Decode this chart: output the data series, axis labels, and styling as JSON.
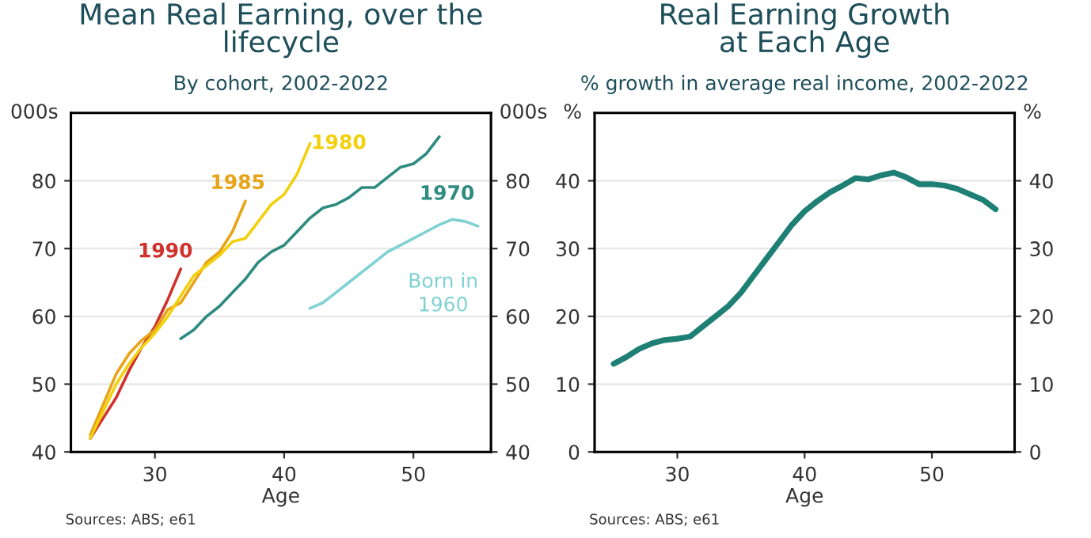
{
  "chart_data": [
    {
      "type": "line",
      "title": "Mean Real Earning, over the\nlifecycle",
      "subtitle": "By cohort, 2002-2022",
      "xlabel": "Age",
      "ylabel": "000s",
      "y2label": "000s",
      "xlim": [
        23.5,
        56
      ],
      "xticks": [
        30,
        40,
        50
      ],
      "ylim": [
        40,
        90
      ],
      "yticks": [
        40,
        50,
        60,
        70,
        80
      ],
      "y2lim": [
        40,
        90
      ],
      "y2ticks": [
        40,
        50,
        60,
        70,
        80
      ],
      "grid": "y",
      "legend": false,
      "series": [
        {
          "name": "1990",
          "color": "#d0312d",
          "x": [
            25,
            26,
            27,
            28,
            29,
            30,
            31,
            32
          ],
          "values": [
            42,
            45,
            48,
            52,
            55.5,
            58.5,
            62.5,
            67
          ]
        },
        {
          "name": "1985",
          "color": "#e8a317",
          "x": [
            25,
            26,
            27,
            28,
            29,
            30,
            31,
            32,
            33,
            34,
            35,
            36,
            37
          ],
          "values": [
            42.5,
            47,
            51.5,
            54.5,
            56.5,
            58,
            61,
            62,
            65,
            68,
            69.5,
            72.5,
            77
          ]
        },
        {
          "name": "1980",
          "color": "#f2d00c",
          "x": [
            25,
            26,
            27,
            28,
            29,
            30,
            31,
            32,
            33,
            34,
            35,
            36,
            37,
            38,
            39,
            40,
            41,
            42
          ],
          "values": [
            42,
            46,
            50,
            53,
            55.5,
            57.5,
            60,
            63,
            66,
            67.5,
            69,
            71,
            71.5,
            74,
            76.5,
            78,
            81,
            85.5
          ]
        },
        {
          "name": "1970",
          "color": "#2e8b80",
          "x": [
            32,
            33,
            34,
            35,
            36,
            37,
            38,
            39,
            40,
            41,
            42,
            43,
            44,
            45,
            46,
            47,
            48,
            49,
            50,
            51,
            52
          ],
          "values": [
            56.7,
            58,
            60,
            61.5,
            63.5,
            65.5,
            68,
            69.5,
            70.5,
            72.5,
            74.5,
            76,
            76.5,
            77.5,
            79,
            79,
            80.5,
            82,
            82.5,
            84,
            86.5
          ]
        },
        {
          "name": "Born in\n1960",
          "color": "#7fd1d3",
          "x": [
            42,
            43,
            44,
            45,
            46,
            47,
            48,
            49,
            50,
            51,
            52,
            53,
            54,
            55
          ],
          "values": [
            61.2,
            62,
            63.5,
            65,
            66.5,
            68,
            69.5,
            70.5,
            71.5,
            72.5,
            73.5,
            74.3,
            74,
            73.3
          ]
        }
      ],
      "annotations": [
        "Sources: ABS; e61"
      ]
    },
    {
      "type": "line",
      "title": "Real Earning Growth\nat Each Age",
      "subtitle": "% growth in average real income, 2002-2022",
      "xlabel": "Age",
      "ylabel": "%",
      "y2label": "%",
      "xlim": [
        23.5,
        56.5
      ],
      "xticks": [
        30,
        40,
        50
      ],
      "ylim": [
        0,
        50
      ],
      "yticks": [
        0,
        10,
        20,
        30,
        40
      ],
      "y2lim": [
        0,
        50
      ],
      "y2ticks": [
        0,
        10,
        20,
        30,
        40
      ],
      "grid": "y",
      "legend": false,
      "series": [
        {
          "color": "#1e7f74",
          "x": [
            25,
            26,
            27,
            28,
            29,
            30,
            31,
            32,
            33,
            34,
            35,
            36,
            37,
            38,
            39,
            40,
            41,
            42,
            43,
            44,
            45,
            46,
            47,
            48,
            49,
            50,
            51,
            52,
            53,
            54,
            55
          ],
          "values": [
            13,
            14,
            15.2,
            16,
            16.5,
            16.7,
            17,
            18.5,
            20,
            21.5,
            23.5,
            26,
            28.5,
            31,
            33.5,
            35.5,
            37,
            38.3,
            39.3,
            40.4,
            40.2,
            40.8,
            41.2,
            40.5,
            39.5,
            39.5,
            39.3,
            38.8,
            38,
            37.2,
            35.8
          ]
        }
      ],
      "annotations": [
        "Sources: ABS; e61"
      ]
    }
  ]
}
